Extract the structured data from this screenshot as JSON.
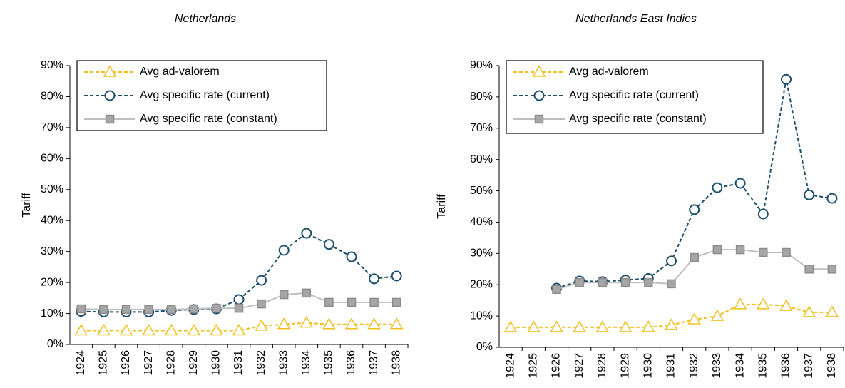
{
  "chart_data": [
    {
      "type": "line",
      "title": "Netherlands",
      "y_label": "Tariff",
      "categories": [
        "1924",
        "1925",
        "1926",
        "1927",
        "1928",
        "1929",
        "1930",
        "1931",
        "1932",
        "1933",
        "1934",
        "1935",
        "1936",
        "1937",
        "1938"
      ],
      "ylim": [
        0,
        90
      ],
      "yticks": [
        {
          "value": 0,
          "label": "0%"
        },
        {
          "value": 10,
          "label": "10%"
        },
        {
          "value": 20,
          "label": "20%"
        },
        {
          "value": 30,
          "label": "30%"
        },
        {
          "value": 40,
          "label": "40%"
        },
        {
          "value": 50,
          "label": "50%"
        },
        {
          "value": 60,
          "label": "60%"
        },
        {
          "value": 70,
          "label": "70%"
        },
        {
          "value": 80,
          "label": "80%"
        },
        {
          "value": 90,
          "label": "90%"
        }
      ],
      "legend": "top-left",
      "series": [
        {
          "name": "Avg ad-valorem",
          "color": "#f2c01e",
          "marker": "triangle",
          "dash": "dashed",
          "values": [
            4.5,
            4.5,
            4.5,
            4.5,
            4.5,
            4.5,
            4.5,
            4.5,
            6,
            6.5,
            7,
            6.5,
            6.5,
            6.5,
            6.5
          ]
        },
        {
          "name": "Avg specific rate (current)",
          "color": "#1c4e6a",
          "marker": "circle",
          "dash": "dashed",
          "values": [
            10.7,
            10.5,
            10.5,
            10.5,
            11,
            11.3,
            11.5,
            14.5,
            20.7,
            30.4,
            35.9,
            32.3,
            28.3,
            21.2,
            22.1
          ]
        },
        {
          "name": "Avg specific rate (constant)",
          "color": "#bfbfbf",
          "marker": "square",
          "dash": "solid",
          "values": [
            11.5,
            11.3,
            11.3,
            11.3,
            11.3,
            11.5,
            11.7,
            11.7,
            13.1,
            16.1,
            16.6,
            13.6,
            13.6,
            13.6,
            13.6
          ]
        }
      ]
    },
    {
      "type": "line",
      "title": "Netherlands East Indies",
      "y_label": "Tariff",
      "categories": [
        "1924",
        "1925",
        "1926",
        "1927",
        "1928",
        "1929",
        "1930",
        "1931",
        "1932",
        "1933",
        "1934",
        "1935",
        "1936",
        "1937",
        "1938"
      ],
      "ylim": [
        0,
        90
      ],
      "yticks": [
        {
          "value": 0,
          "label": "0%"
        },
        {
          "value": 10,
          "label": "10%"
        },
        {
          "value": 20,
          "label": "20%"
        },
        {
          "value": 30,
          "label": "30%"
        },
        {
          "value": 40,
          "label": "40%"
        },
        {
          "value": 50,
          "label": "50%"
        },
        {
          "value": 60,
          "label": "60%"
        },
        {
          "value": 70,
          "label": "70%"
        },
        {
          "value": 80,
          "label": "80%"
        },
        {
          "value": 90,
          "label": "90%"
        }
      ],
      "legend": "top-left",
      "series": [
        {
          "name": "Avg ad-valorem",
          "color": "#f2c01e",
          "marker": "triangle",
          "dash": "dashed",
          "values": [
            6.4,
            6.4,
            6.4,
            6.4,
            6.4,
            6.4,
            6.4,
            7.1,
            8.9,
            10,
            13.7,
            13.7,
            13.2,
            11.2,
            11.2
          ]
        },
        {
          "name": "Avg specific rate (current)",
          "color": "#1c4e6a",
          "marker": "circle",
          "dash": "dashed",
          "values": [
            null,
            null,
            18.9,
            21.2,
            21,
            21.5,
            22,
            27.6,
            44,
            51,
            52.4,
            42.6,
            85.6,
            48.7,
            47.6
          ]
        },
        {
          "name": "Avg specific rate (constant)",
          "color": "#bfbfbf",
          "marker": "square",
          "dash": "solid",
          "values": [
            null,
            null,
            18.5,
            20.7,
            20.7,
            20.7,
            20.7,
            20.3,
            28.7,
            31.2,
            31.2,
            30.3,
            30.3,
            25,
            25
          ]
        }
      ]
    }
  ]
}
